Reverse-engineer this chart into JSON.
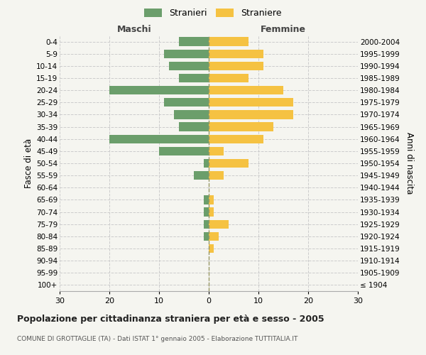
{
  "age_groups": [
    "100+",
    "95-99",
    "90-94",
    "85-89",
    "80-84",
    "75-79",
    "70-74",
    "65-69",
    "60-64",
    "55-59",
    "50-54",
    "45-49",
    "40-44",
    "35-39",
    "30-34",
    "25-29",
    "20-24",
    "15-19",
    "10-14",
    "5-9",
    "0-4"
  ],
  "birth_years": [
    "≤ 1904",
    "1905-1909",
    "1910-1914",
    "1915-1919",
    "1920-1924",
    "1925-1929",
    "1930-1934",
    "1935-1939",
    "1940-1944",
    "1945-1949",
    "1950-1954",
    "1955-1959",
    "1960-1964",
    "1965-1969",
    "1970-1974",
    "1975-1979",
    "1980-1984",
    "1985-1989",
    "1990-1994",
    "1995-1999",
    "2000-2004"
  ],
  "males": [
    0,
    0,
    0,
    0,
    1,
    1,
    1,
    1,
    0,
    3,
    1,
    10,
    20,
    6,
    7,
    9,
    20,
    6,
    8,
    9,
    6
  ],
  "females": [
    0,
    0,
    0,
    1,
    2,
    4,
    1,
    1,
    0,
    3,
    8,
    3,
    11,
    13,
    17,
    17,
    15,
    8,
    11,
    11,
    8
  ],
  "male_color": "#6b9e6b",
  "female_color": "#f5c242",
  "bg_color": "#f5f5f0",
  "grid_color": "#cccccc",
  "title": "Popolazione per cittadinanza straniera per età e sesso - 2005",
  "subtitle": "COMUNE DI GROTTAGLIE (TA) - Dati ISTAT 1° gennaio 2005 - Elaborazione TUTTITALIA.IT",
  "xlabel_left": "Maschi",
  "xlabel_right": "Femmine",
  "ylabel_left": "Fasce di età",
  "ylabel_right": "Anni di nascita",
  "legend_male": "Stranieri",
  "legend_female": "Straniere",
  "xlim": 30,
  "center_line_color": "#aaaaaa"
}
